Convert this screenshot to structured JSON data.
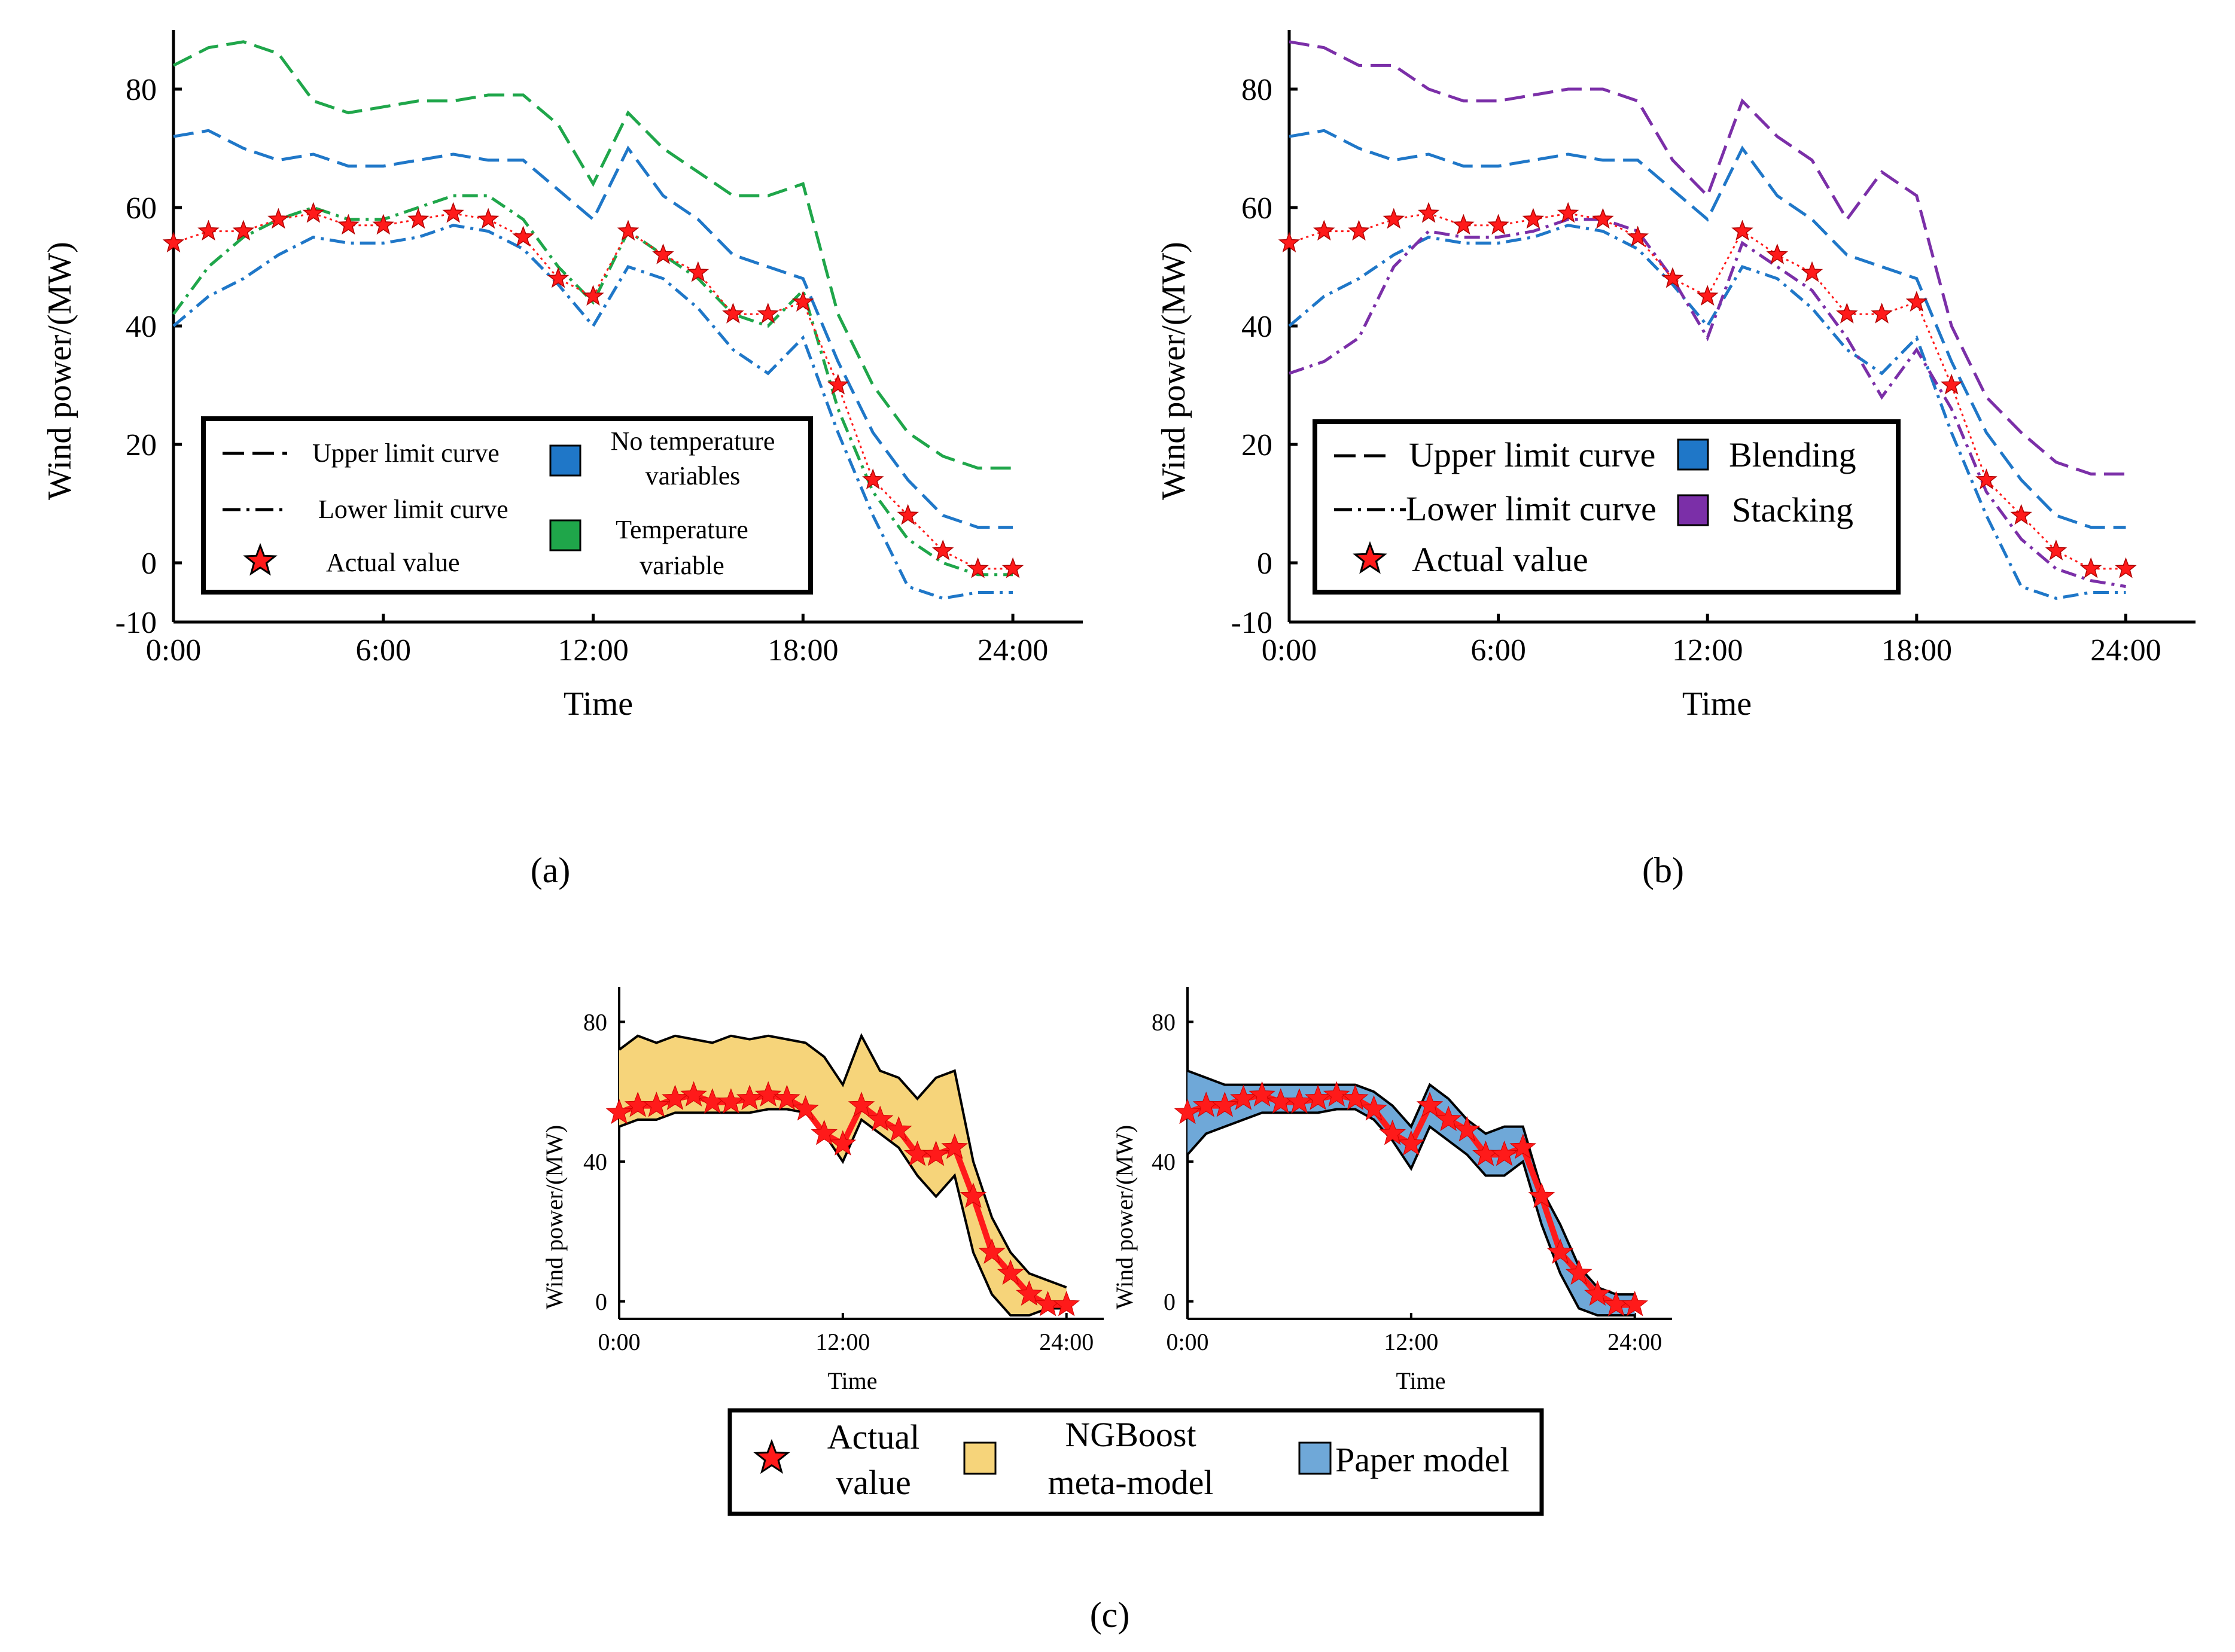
{
  "colors": {
    "actual": "#ff1a1a",
    "no_temperature": "#1f77c8",
    "temperature": "#1fa64a",
    "blending": "#1f77c8",
    "stacking": "#7b2fa8",
    "ngboost_fill": "#f6d47a",
    "paper_fill": "#6fa8d8"
  },
  "panels": {
    "a": {
      "label": "(a)"
    },
    "b": {
      "label": "(b)"
    },
    "c": {
      "label": "(c)"
    }
  },
  "legend_a": {
    "upper": "Upper limit curve",
    "lower": "Lower limit curve",
    "actual": "Actual value",
    "no_temp_1": "No temperature",
    "no_temp_2": "variables",
    "temp_1": "Temperature",
    "temp_2": "variable"
  },
  "legend_b": {
    "upper": "Upper limit curve",
    "lower": "Lower limit curve",
    "actual": "Actual value",
    "blending": "Blending",
    "stacking": "Stacking"
  },
  "legend_c": {
    "actual_1": "Actual",
    "actual_2": "value",
    "ngboost_1": "NGBoost",
    "ngboost_2": "meta-model",
    "paper": "Paper model"
  },
  "chart_data": [
    {
      "id": "a",
      "type": "line",
      "title": "",
      "xlabel": "Time",
      "ylabel": "Wind power/(MW)",
      "xlim": [
        0,
        26
      ],
      "ylim": [
        -10,
        90
      ],
      "xticks": [
        "0:00",
        "6:00",
        "12:00",
        "18:00",
        "24:00"
      ],
      "yticks": [
        "-10",
        "0",
        "20",
        "40",
        "60",
        "80"
      ],
      "x": [
        0,
        1,
        2,
        3,
        4,
        5,
        6,
        7,
        8,
        9,
        10,
        11,
        12,
        13,
        14,
        15,
        16,
        17,
        18,
        19,
        20,
        21,
        22,
        23,
        24
      ],
      "series": [
        {
          "name": "Actual value",
          "values": [
            54,
            56,
            56,
            58,
            59,
            57,
            57,
            58,
            59,
            58,
            55,
            48,
            45,
            56,
            52,
            49,
            42,
            42,
            44,
            30,
            14,
            8,
            2,
            -1,
            -1
          ]
        },
        {
          "name": "No temperature variables (upper)",
          "values": [
            72,
            73,
            70,
            68,
            69,
            67,
            67,
            68,
            69,
            68,
            68,
            63,
            58,
            70,
            62,
            58,
            52,
            50,
            48,
            34,
            22,
            14,
            8,
            6,
            6
          ]
        },
        {
          "name": "No temperature variables (lower)",
          "values": [
            40,
            45,
            48,
            52,
            55,
            54,
            54,
            55,
            57,
            56,
            53,
            47,
            40,
            50,
            48,
            43,
            36,
            32,
            38,
            22,
            8,
            -4,
            -6,
            -5,
            -5
          ]
        },
        {
          "name": "Temperature variable (upper)",
          "values": [
            84,
            87,
            88,
            86,
            78,
            76,
            77,
            78,
            78,
            79,
            79,
            74,
            64,
            76,
            70,
            66,
            62,
            62,
            64,
            42,
            30,
            22,
            18,
            16,
            16
          ]
        },
        {
          "name": "Temperature variable (lower)",
          "values": [
            42,
            50,
            55,
            58,
            60,
            58,
            58,
            60,
            62,
            62,
            58,
            50,
            44,
            56,
            52,
            48,
            42,
            40,
            46,
            26,
            12,
            4,
            0,
            -2,
            -2
          ]
        }
      ]
    },
    {
      "id": "b",
      "type": "line",
      "title": "",
      "xlabel": "Time",
      "ylabel": "Wind power/(MW)",
      "xlim": [
        0,
        26
      ],
      "ylim": [
        -10,
        90
      ],
      "xticks": [
        "0:00",
        "6:00",
        "12:00",
        "18:00",
        "24:00"
      ],
      "yticks": [
        "-10",
        "0",
        "20",
        "40",
        "60",
        "80"
      ],
      "x": [
        0,
        1,
        2,
        3,
        4,
        5,
        6,
        7,
        8,
        9,
        10,
        11,
        12,
        13,
        14,
        15,
        16,
        17,
        18,
        19,
        20,
        21,
        22,
        23,
        24
      ],
      "series": [
        {
          "name": "Actual value",
          "values": [
            54,
            56,
            56,
            58,
            59,
            57,
            57,
            58,
            59,
            58,
            55,
            48,
            45,
            56,
            52,
            49,
            42,
            42,
            44,
            30,
            14,
            8,
            2,
            -1,
            -1
          ]
        },
        {
          "name": "Blending (upper)",
          "values": [
            72,
            73,
            70,
            68,
            69,
            67,
            67,
            68,
            69,
            68,
            68,
            63,
            58,
            70,
            62,
            58,
            52,
            50,
            48,
            34,
            22,
            14,
            8,
            6,
            6
          ]
        },
        {
          "name": "Blending (lower)",
          "values": [
            40,
            45,
            48,
            52,
            55,
            54,
            54,
            55,
            57,
            56,
            53,
            47,
            40,
            50,
            48,
            43,
            36,
            32,
            38,
            22,
            8,
            -4,
            -6,
            -5,
            -5
          ]
        },
        {
          "name": "Stacking (upper)",
          "values": [
            88,
            87,
            84,
            84,
            80,
            78,
            78,
            79,
            80,
            80,
            78,
            68,
            62,
            78,
            72,
            68,
            58,
            66,
            62,
            40,
            28,
            22,
            17,
            15,
            15
          ]
        },
        {
          "name": "Stacking (lower)",
          "values": [
            32,
            34,
            38,
            50,
            56,
            55,
            55,
            56,
            58,
            58,
            56,
            48,
            38,
            54,
            50,
            46,
            38,
            28,
            36,
            26,
            12,
            4,
            -1,
            -3,
            -4
          ]
        }
      ]
    },
    {
      "id": "c-left",
      "type": "area",
      "title": "",
      "xlabel": "Time",
      "ylabel": "Wind power/(MW)",
      "xlim": [
        0,
        26
      ],
      "ylim": [
        -5,
        90
      ],
      "xticks": [
        "0:00",
        "12:00",
        "24:00"
      ],
      "yticks": [
        "0",
        "40",
        "80"
      ],
      "x": [
        0,
        1,
        2,
        3,
        4,
        5,
        6,
        7,
        8,
        9,
        10,
        11,
        12,
        13,
        14,
        15,
        16,
        17,
        18,
        19,
        20,
        21,
        22,
        23,
        24
      ],
      "series": [
        {
          "name": "NGBoost meta-model (upper)",
          "values": [
            72,
            76,
            74,
            76,
            75,
            74,
            76,
            75,
            76,
            75,
            74,
            70,
            62,
            76,
            66,
            64,
            58,
            64,
            66,
            40,
            24,
            14,
            8,
            6,
            4
          ]
        },
        {
          "name": "NGBoost meta-model (lower)",
          "values": [
            50,
            52,
            52,
            54,
            54,
            54,
            54,
            54,
            55,
            55,
            54,
            48,
            40,
            52,
            48,
            44,
            36,
            30,
            36,
            14,
            2,
            -4,
            -4,
            -2,
            -2
          ]
        },
        {
          "name": "Actual value",
          "values": [
            54,
            56,
            56,
            58,
            59,
            57,
            57,
            58,
            59,
            58,
            55,
            48,
            45,
            56,
            52,
            49,
            42,
            42,
            44,
            30,
            14,
            8,
            2,
            -1,
            -1
          ]
        }
      ]
    },
    {
      "id": "c-right",
      "type": "area",
      "title": "",
      "xlabel": "Time",
      "ylabel": "Wind power/(MW)",
      "xlim": [
        0,
        26
      ],
      "ylim": [
        -5,
        90
      ],
      "xticks": [
        "0:00",
        "12:00",
        "24:00"
      ],
      "yticks": [
        "0",
        "40",
        "80"
      ],
      "x": [
        0,
        1,
        2,
        3,
        4,
        5,
        6,
        7,
        8,
        9,
        10,
        11,
        12,
        13,
        14,
        15,
        16,
        17,
        18,
        19,
        20,
        21,
        22,
        23,
        24
      ],
      "series": [
        {
          "name": "Paper model (upper)",
          "values": [
            66,
            64,
            62,
            62,
            62,
            62,
            62,
            62,
            62,
            62,
            60,
            56,
            50,
            62,
            58,
            52,
            48,
            50,
            50,
            32,
            22,
            10,
            4,
            2,
            2
          ]
        },
        {
          "name": "Paper model (lower)",
          "values": [
            42,
            48,
            50,
            52,
            54,
            54,
            54,
            54,
            55,
            55,
            52,
            46,
            38,
            50,
            46,
            42,
            36,
            36,
            40,
            22,
            8,
            -2,
            -4,
            -4,
            -4
          ]
        },
        {
          "name": "Actual value",
          "values": [
            54,
            56,
            56,
            58,
            59,
            57,
            57,
            58,
            59,
            58,
            55,
            48,
            45,
            56,
            52,
            49,
            42,
            42,
            44,
            30,
            14,
            8,
            2,
            -1,
            -1
          ]
        }
      ]
    }
  ]
}
